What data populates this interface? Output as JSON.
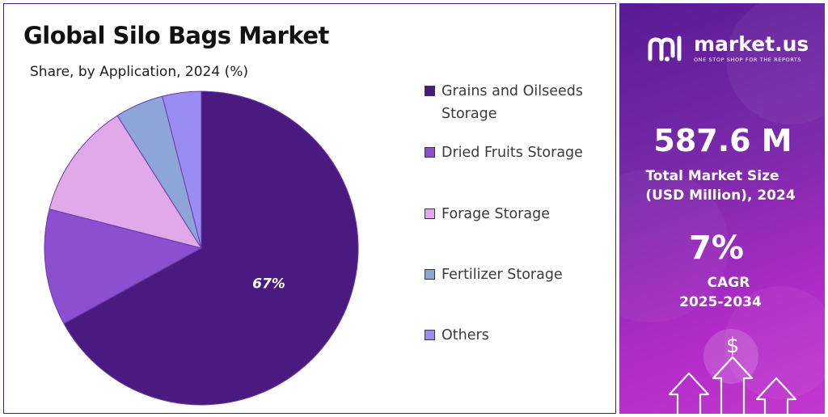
{
  "chart_data": {
    "type": "pie",
    "title": "Global Silo Bags Market",
    "subtitle": "Share, by Application, 2024 (%)",
    "categories": [
      "Grains and Oilseeds Storage",
      "Dried Fruits Storage",
      "Forage Storage",
      "Fertilizer Storage",
      "Others"
    ],
    "values": [
      67,
      12,
      12,
      5,
      4
    ],
    "colors": [
      "#4a1a80",
      "#8b4fcf",
      "#e2a9ea",
      "#8da5d9",
      "#9b8cf2"
    ],
    "data_labels": [
      "67%",
      "",
      "",
      "",
      ""
    ],
    "legend_position": "right"
  },
  "brand": {
    "name": "market.us",
    "tagline": "ONE STOP SHOP FOR THE REPORTS"
  },
  "stats": {
    "market_size_value": "587.6 M",
    "market_size_label_line1": "Total Market Size",
    "market_size_label_line2": "(USD Million), 2024",
    "cagr_value": "7%",
    "cagr_label_line1": "CAGR",
    "cagr_label_line2": "2025-2034"
  },
  "icons": [
    "dollar-icon",
    "arrow-up-icon"
  ]
}
